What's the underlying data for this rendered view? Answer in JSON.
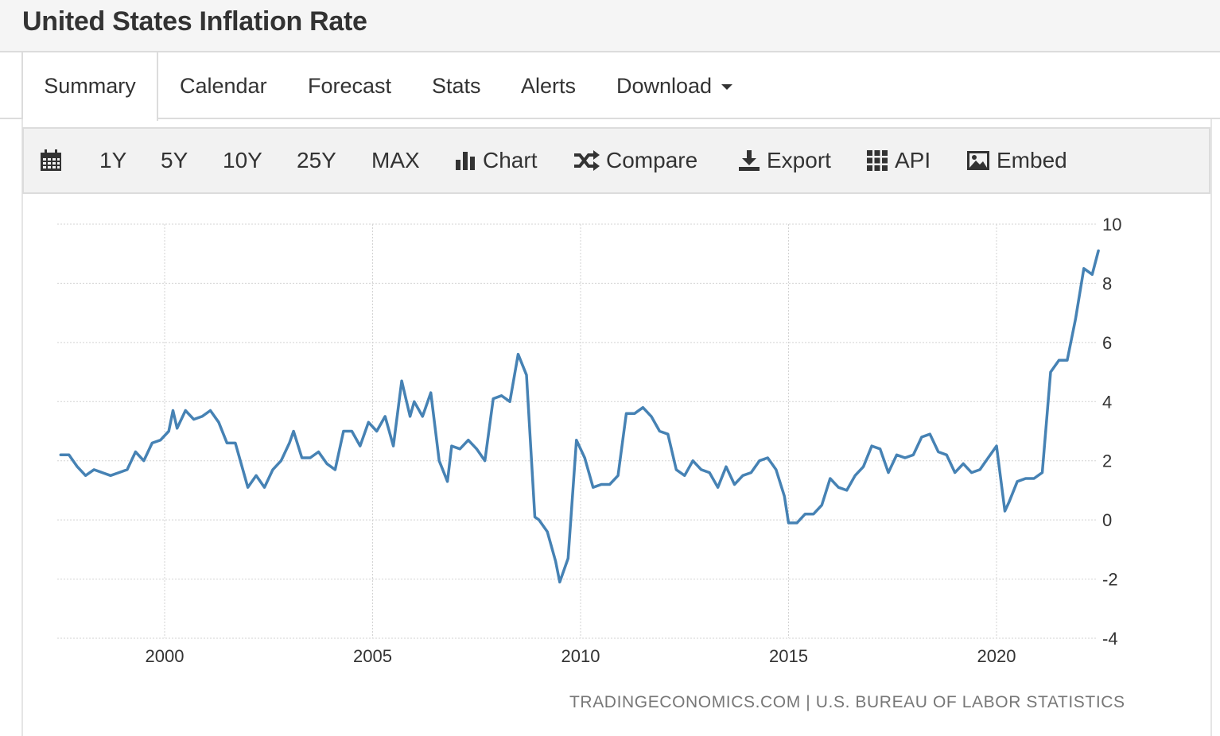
{
  "page": {
    "title": "United States Inflation Rate"
  },
  "tabs": [
    {
      "label": "Summary",
      "active": true
    },
    {
      "label": "Calendar"
    },
    {
      "label": "Forecast"
    },
    {
      "label": "Stats"
    },
    {
      "label": "Alerts"
    },
    {
      "label": "Download",
      "has_dropdown": true
    }
  ],
  "toolbar": {
    "calendar_icon": "calendar-icon",
    "ranges": [
      "1Y",
      "5Y",
      "10Y",
      "25Y",
      "MAX"
    ],
    "chart_label": "Chart",
    "compare_label": "Compare",
    "export_label": "Export",
    "api_label": "API",
    "embed_label": "Embed"
  },
  "chart_data": {
    "type": "line",
    "title": "",
    "xlabel": "",
    "ylabel": "",
    "x_ticks": [
      "2000",
      "2005",
      "2010",
      "2015",
      "2020"
    ],
    "y_ticks": [
      "10",
      "8",
      "6",
      "4",
      "2",
      "0",
      "-2",
      "-4"
    ],
    "ylim": [
      -4,
      10
    ],
    "line_color": "#4682b4",
    "grid": true,
    "y_axis_side": "right",
    "series": [
      {
        "x": [
          1997.5,
          1997.7,
          1997.9,
          1998.1,
          1998.3,
          1998.5,
          1998.7,
          1998.9,
          1999.1,
          1999.3,
          1999.5,
          1999.7,
          1999.9,
          2000.1,
          2000.2,
          2000.3,
          2000.5,
          2000.7,
          2000.9,
          2001.1,
          2001.3,
          2001.5,
          2001.7,
          2001.9,
          2002.0,
          2002.2,
          2002.4,
          2002.6,
          2002.8,
          2003.0,
          2003.1,
          2003.3,
          2003.5,
          2003.7,
          2003.9,
          2004.1,
          2004.3,
          2004.5,
          2004.7,
          2004.9,
          2005.1,
          2005.3,
          2005.5,
          2005.7,
          2005.9,
          2006.0,
          2006.2,
          2006.4,
          2006.6,
          2006.8,
          2006.9,
          2007.1,
          2007.3,
          2007.5,
          2007.7,
          2007.9,
          2008.1,
          2008.3,
          2008.5,
          2008.7,
          2008.9,
          2009.0,
          2009.2,
          2009.4,
          2009.5,
          2009.7,
          2009.9,
          2010.1,
          2010.3,
          2010.5,
          2010.7,
          2010.9,
          2011.1,
          2011.3,
          2011.5,
          2011.7,
          2011.9,
          2012.1,
          2012.3,
          2012.5,
          2012.7,
          2012.9,
          2013.1,
          2013.3,
          2013.5,
          2013.7,
          2013.9,
          2014.1,
          2014.3,
          2014.5,
          2014.7,
          2014.9,
          2015.0,
          2015.2,
          2015.4,
          2015.6,
          2015.8,
          2016.0,
          2016.2,
          2016.4,
          2016.6,
          2016.8,
          2017.0,
          2017.2,
          2017.4,
          2017.6,
          2017.8,
          2018.0,
          2018.2,
          2018.4,
          2018.6,
          2018.8,
          2019.0,
          2019.2,
          2019.4,
          2019.6,
          2019.8,
          2020.0,
          2020.2,
          2020.3,
          2020.5,
          2020.7,
          2020.9,
          2021.1,
          2021.3,
          2021.5,
          2021.7,
          2021.9,
          2022.1,
          2022.3,
          2022.45
        ],
        "values": [
          2.2,
          2.2,
          1.8,
          1.5,
          1.7,
          1.6,
          1.5,
          1.6,
          1.7,
          2.3,
          2.0,
          2.6,
          2.7,
          3.0,
          3.7,
          3.1,
          3.7,
          3.4,
          3.5,
          3.7,
          3.3,
          2.6,
          2.6,
          1.6,
          1.1,
          1.5,
          1.1,
          1.7,
          2.0,
          2.6,
          3.0,
          2.1,
          2.1,
          2.3,
          1.9,
          1.7,
          3.0,
          3.0,
          2.5,
          3.3,
          3.0,
          3.5,
          2.5,
          4.7,
          3.5,
          4.0,
          3.5,
          4.3,
          2.0,
          1.3,
          2.5,
          2.4,
          2.7,
          2.4,
          2.0,
          4.1,
          4.2,
          4.0,
          5.6,
          4.9,
          0.1,
          0.0,
          -0.4,
          -1.4,
          -2.1,
          -1.3,
          2.7,
          2.1,
          1.1,
          1.2,
          1.2,
          1.5,
          3.6,
          3.6,
          3.8,
          3.5,
          3.0,
          2.9,
          1.7,
          1.5,
          2.0,
          1.7,
          1.6,
          1.1,
          1.8,
          1.2,
          1.5,
          1.6,
          2.0,
          2.1,
          1.7,
          0.8,
          -0.1,
          -0.1,
          0.2,
          0.2,
          0.5,
          1.4,
          1.1,
          1.0,
          1.5,
          1.8,
          2.5,
          2.4,
          1.6,
          2.2,
          2.1,
          2.2,
          2.8,
          2.9,
          2.3,
          2.2,
          1.6,
          1.9,
          1.6,
          1.7,
          2.1,
          2.5,
          0.3,
          0.6,
          1.3,
          1.4,
          1.4,
          1.6,
          5.0,
          5.4,
          5.4,
          6.8,
          8.5,
          8.3,
          9.1
        ]
      }
    ],
    "source": "TRADINGECONOMICS.COM  |  U.S. BUREAU OF LABOR STATISTICS"
  }
}
